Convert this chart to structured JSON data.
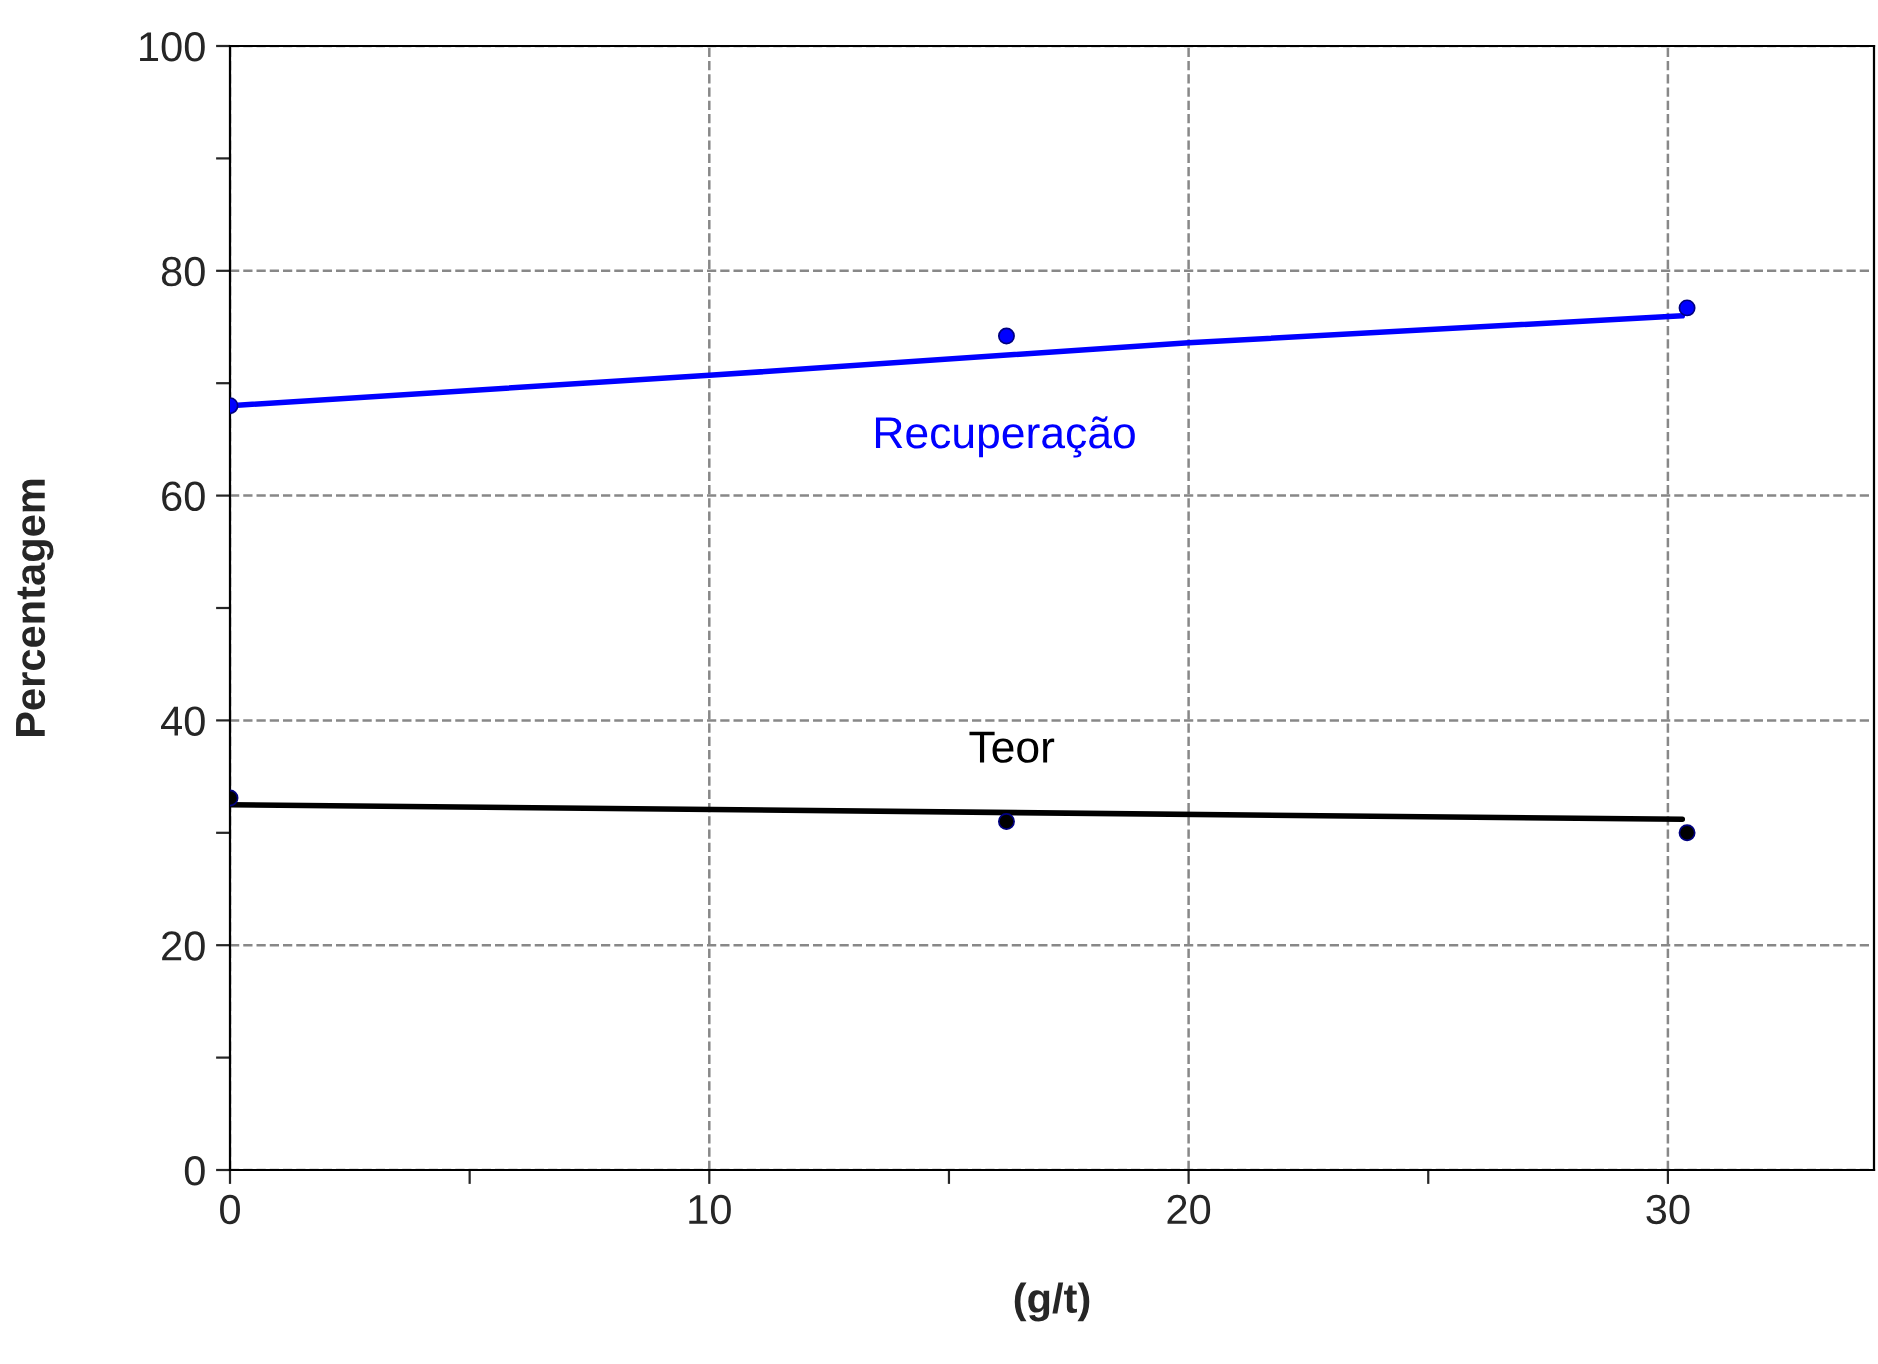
{
  "chart_data": {
    "type": "scatter",
    "xlabel": "(g/t)",
    "ylabel": "Percentagem",
    "xlim": [
      0,
      34.3
    ],
    "ylim": [
      0,
      100
    ],
    "xticks": [
      0,
      {
        "value": 5,
        "label": null
      },
      10,
      {
        "value": 15,
        "label": null
      },
      20,
      {
        "value": 25,
        "label": null
      },
      30
    ],
    "yticks": [
      0,
      {
        "value": 10,
        "label": null
      },
      20,
      {
        "value": 30,
        "label": null
      },
      40,
      {
        "value": 50,
        "label": null
      },
      60,
      {
        "value": 70,
        "label": null
      },
      80,
      {
        "value": 90,
        "label": null
      },
      100
    ],
    "grid": true,
    "series": [
      {
        "color": "#0000ff",
        "marker": "circle",
        "x": [
          0,
          16.2,
          30.4
        ],
        "values": [
          68.0,
          74.2,
          76.7
        ]
      },
      {
        "type": "line",
        "color": "#0000ff",
        "line_style": "solid",
        "x": [
          0,
          10,
          20,
          30.3
        ],
        "values": [
          68.0,
          70.7,
          73.6,
          76.0
        ]
      },
      {
        "color": "#000000",
        "marker": "circle",
        "x": [
          0,
          16.2,
          30.4
        ],
        "values": [
          33.1,
          31.0,
          30.0
        ]
      },
      {
        "type": "line",
        "color": "#000000",
        "line_style": "solid",
        "x": [
          0,
          30.3
        ],
        "values": [
          32.5,
          31.2
        ]
      }
    ],
    "annotations": [
      "Recuperação",
      "Teor"
    ]
  }
}
